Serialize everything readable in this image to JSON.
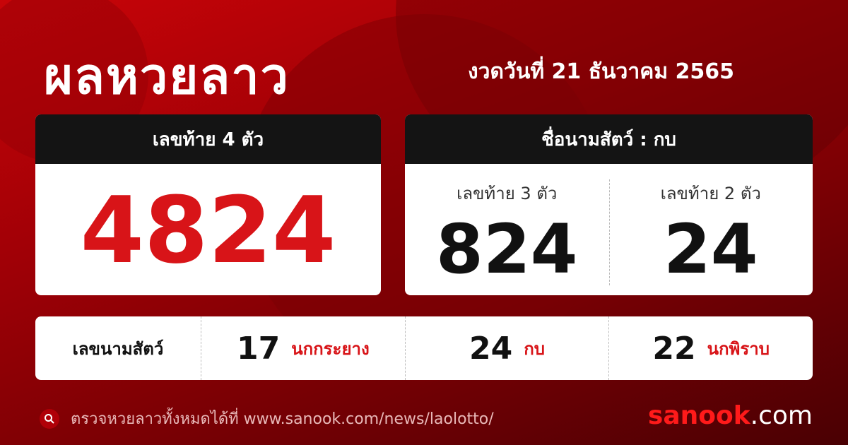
{
  "title": "ผลหวยลาว",
  "date": "งวดวันที่ 21 ธันวาคม 2565",
  "four_digit": {
    "label": "เลขท้าย 4 ตัว",
    "value": "4824"
  },
  "animal_card": {
    "label": "ชื่อนามสัตว์ : กบ",
    "three": {
      "label": "เลขท้าย 3 ตัว",
      "value": "824"
    },
    "two": {
      "label": "เลขท้าย 2 ตัว",
      "value": "24"
    }
  },
  "animals": {
    "label": "เลขนามสัตว์",
    "items": [
      {
        "number": "17",
        "name": "นกกระยาง"
      },
      {
        "number": "24",
        "name": "กบ"
      },
      {
        "number": "22",
        "name": "นกพิราบ"
      }
    ]
  },
  "footer": {
    "text": "ตรวจหวยลาวทั้งหมดได้ที่ www.sanook.com/news/laolotto/",
    "icon": "search-icon"
  },
  "logo": {
    "brand": "sanook",
    "suffix": ".com"
  },
  "colors": {
    "accent": "#d81418",
    "header": "#141414"
  }
}
